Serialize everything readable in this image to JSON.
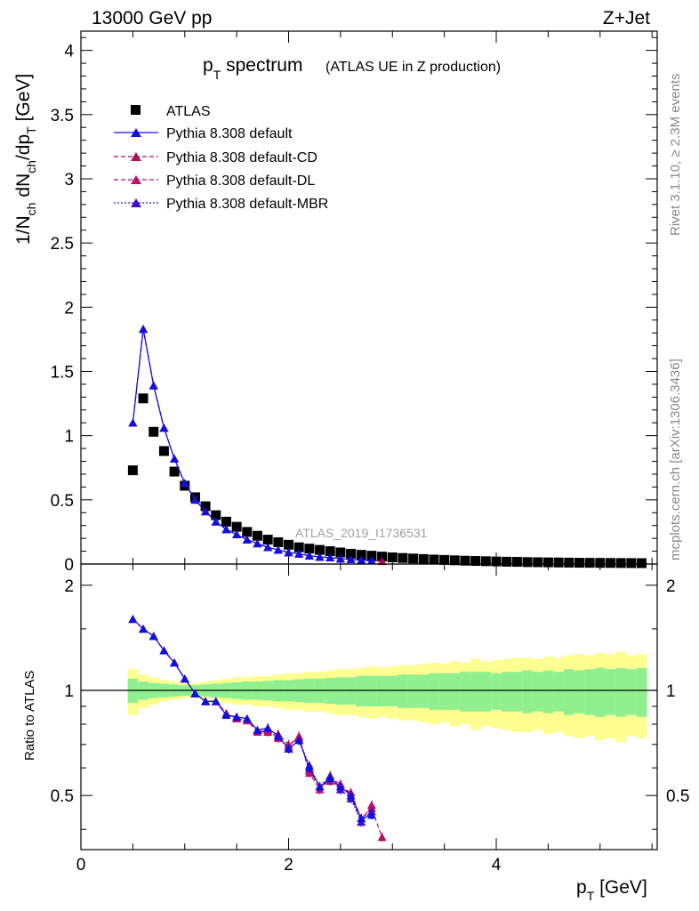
{
  "header": {
    "left": "13000 GeV pp",
    "right": "Z+Jet"
  },
  "side_texts": {
    "top": "Rivet 3.1.10, ≥ 2.3M events",
    "bottom": "mcplots.cern.ch [arXiv:1306.3436]"
  },
  "title": {
    "main": "p",
    "sub": "T",
    "word": " spectrum",
    "paren": "(ATLAS UE in Z production)"
  },
  "watermark": "ATLAS_2019_I1736531",
  "colors": {
    "data": "#000000",
    "default": "#1010e0",
    "cd": "#b0105a",
    "dl": "#c0106a",
    "mbr": "#4010c8",
    "band_inner": "#90f090",
    "band_outer": "#fdfd90"
  },
  "chart_data": [
    {
      "type": "scatter",
      "panel": "main",
      "title": "p_T spectrum (ATLAS UE in Z production)",
      "ylabel": "1/N_ch dN_ch/dp_T [GeV]",
      "xlim": [
        0,
        5.55
      ],
      "ylim": [
        0,
        4.15
      ],
      "yticks": [
        0,
        0.5,
        1,
        1.5,
        2,
        2.5,
        3,
        3.5,
        4
      ],
      "yticklabels": [
        "0",
        "0.5",
        "1",
        "1.5",
        "2",
        "2.5",
        "3",
        "3.5",
        "4"
      ],
      "x": [
        0.5,
        0.6,
        0.7,
        0.8,
        0.9,
        1.0,
        1.1,
        1.2,
        1.3,
        1.4,
        1.5,
        1.6,
        1.7,
        1.8,
        1.9,
        2.0,
        2.1,
        2.2,
        2.3,
        2.4,
        2.5,
        2.6,
        2.7,
        2.8,
        2.9,
        3.0,
        3.1,
        3.2,
        3.3,
        3.4,
        3.5,
        3.6,
        3.7,
        3.8,
        3.9,
        4.0,
        4.1,
        4.2,
        4.3,
        4.4,
        4.5,
        4.6,
        4.7,
        4.8,
        4.9,
        5.0,
        5.1,
        5.2,
        5.3,
        5.4
      ],
      "series": [
        {
          "name": "ATLAS",
          "legend": "ATLAS",
          "marker": "square",
          "values": [
            0.73,
            1.29,
            1.03,
            0.88,
            0.72,
            0.61,
            0.52,
            0.45,
            0.38,
            0.33,
            0.29,
            0.25,
            0.22,
            0.19,
            0.17,
            0.15,
            0.13,
            0.12,
            0.11,
            0.1,
            0.09,
            0.08,
            0.072,
            0.065,
            0.058,
            0.052,
            0.047,
            0.043,
            0.039,
            0.035,
            0.032,
            0.029,
            0.026,
            0.024,
            0.022,
            0.02,
            0.018,
            0.017,
            0.015,
            0.014,
            0.013,
            0.012,
            0.011,
            0.01,
            0.0095,
            0.009,
            0.0085,
            0.008,
            0.0075,
            0.007
          ]
        },
        {
          "name": "default",
          "legend": "Pythia 8.308 default",
          "marker": "triangle",
          "line": "solid",
          "values": [
            1.1,
            1.83,
            1.39,
            1.06,
            0.82,
            0.63,
            0.5,
            0.41,
            0.33,
            0.27,
            0.23,
            0.19,
            0.16,
            0.13,
            0.11,
            0.09,
            0.08,
            0.065,
            0.055,
            0.05,
            0.042,
            0.036,
            0.03,
            0.026
          ]
        },
        {
          "name": "default-CD",
          "legend": "Pythia 8.308 default-CD",
          "marker": "triangle",
          "line": "dashed",
          "values": [
            1.1,
            1.83,
            1.39,
            1.06,
            0.82,
            0.63,
            0.5,
            0.41,
            0.33,
            0.27,
            0.23,
            0.19,
            0.16,
            0.13,
            0.11,
            0.09,
            0.08,
            0.065,
            0.055,
            0.05,
            0.042,
            0.036,
            0.03,
            0.026,
            0.022
          ]
        },
        {
          "name": "default-DL",
          "legend": "Pythia 8.308 default-DL",
          "marker": "triangle",
          "line": "dashed",
          "values": [
            1.1,
            1.83,
            1.39,
            1.06,
            0.82,
            0.63,
            0.5,
            0.41,
            0.33,
            0.27,
            0.23,
            0.19,
            0.16,
            0.13,
            0.11,
            0.09,
            0.08,
            0.065,
            0.055,
            0.05,
            0.042,
            0.036,
            0.03,
            0.026
          ]
        },
        {
          "name": "default-MBR",
          "legend": "Pythia 8.308 default-MBR",
          "marker": "triangle",
          "line": "dotted",
          "values": [
            1.1,
            1.83,
            1.39,
            1.06,
            0.82,
            0.63,
            0.5,
            0.41,
            0.33,
            0.27,
            0.23,
            0.19,
            0.16,
            0.13,
            0.11,
            0.09,
            0.08,
            0.065,
            0.055,
            0.05,
            0.042,
            0.036,
            0.03,
            0.026
          ]
        }
      ]
    },
    {
      "type": "scatter",
      "panel": "ratio",
      "xlabel": "p_T [GeV]",
      "ylabel": "Ratio to ATLAS",
      "xlim": [
        0,
        5.55
      ],
      "ylim": [
        0.35,
        2.3
      ],
      "yscale": "log",
      "yticks": [
        0.5,
        1,
        2
      ],
      "yticklabels": [
        "0.5",
        "1",
        "2"
      ],
      "xticks": [
        0,
        2,
        4
      ],
      "xticklabels": [
        "0",
        "2",
        "4"
      ],
      "x": [
        0.5,
        0.6,
        0.7,
        0.8,
        0.9,
        1.0,
        1.1,
        1.2,
        1.3,
        1.4,
        1.5,
        1.6,
        1.7,
        1.8,
        1.9,
        2.0,
        2.1,
        2.2,
        2.3,
        2.4,
        2.5,
        2.6,
        2.7,
        2.8,
        2.9
      ],
      "band_x_edges": [
        0.45,
        0.55,
        0.65,
        0.75,
        0.85,
        0.95,
        1.05,
        1.15,
        1.25,
        1.35,
        1.45,
        1.55,
        1.65,
        1.75,
        1.85,
        1.95,
        2.05,
        2.15,
        2.25,
        2.35,
        2.45,
        2.55,
        2.65,
        2.75,
        2.85,
        2.95,
        3.05,
        3.15,
        3.25,
        3.35,
        3.45,
        3.55,
        3.65,
        3.75,
        3.85,
        3.95,
        4.05,
        4.15,
        4.25,
        4.35,
        4.45,
        4.55,
        4.65,
        4.75,
        4.85,
        4.95,
        5.05,
        5.15,
        5.25,
        5.35,
        5.45
      ],
      "band_inner": [
        0.08,
        0.06,
        0.05,
        0.045,
        0.04,
        0.035,
        0.035,
        0.04,
        0.045,
        0.05,
        0.055,
        0.06,
        0.06,
        0.065,
        0.07,
        0.07,
        0.075,
        0.08,
        0.08,
        0.085,
        0.09,
        0.09,
        0.1,
        0.1,
        0.1,
        0.1,
        0.11,
        0.11,
        0.11,
        0.12,
        0.12,
        0.12,
        0.13,
        0.13,
        0.13,
        0.12,
        0.13,
        0.13,
        0.14,
        0.13,
        0.14,
        0.13,
        0.15,
        0.14,
        0.15,
        0.16,
        0.15,
        0.16,
        0.15,
        0.16
      ],
      "band_outer": [
        0.15,
        0.11,
        0.09,
        0.07,
        0.06,
        0.05,
        0.05,
        0.06,
        0.07,
        0.08,
        0.09,
        0.09,
        0.1,
        0.1,
        0.11,
        0.12,
        0.12,
        0.13,
        0.13,
        0.14,
        0.15,
        0.15,
        0.16,
        0.17,
        0.16,
        0.17,
        0.18,
        0.18,
        0.19,
        0.2,
        0.19,
        0.21,
        0.2,
        0.23,
        0.21,
        0.22,
        0.23,
        0.24,
        0.24,
        0.23,
        0.25,
        0.24,
        0.26,
        0.27,
        0.26,
        0.28,
        0.27,
        0.29,
        0.26,
        0.27
      ],
      "series": [
        {
          "name": "default",
          "values": [
            1.6,
            1.5,
            1.43,
            1.3,
            1.2,
            1.08,
            0.98,
            0.93,
            0.93,
            0.85,
            0.84,
            0.83,
            0.77,
            0.78,
            0.74,
            0.68,
            0.72,
            0.6,
            0.53,
            0.56,
            0.53,
            0.5,
            0.43,
            0.44
          ]
        },
        {
          "name": "default-CD",
          "values": [
            1.6,
            1.5,
            1.43,
            1.3,
            1.2,
            1.08,
            0.98,
            0.93,
            0.93,
            0.86,
            0.83,
            0.82,
            0.76,
            0.76,
            0.75,
            0.7,
            0.73,
            0.59,
            0.53,
            0.55,
            0.53,
            0.51,
            0.43,
            0.46,
            0.38
          ]
        },
        {
          "name": "default-DL",
          "values": [
            1.6,
            1.5,
            1.43,
            1.3,
            1.2,
            1.08,
            0.98,
            0.93,
            0.93,
            0.86,
            0.83,
            0.82,
            0.76,
            0.77,
            0.73,
            0.69,
            0.74,
            0.58,
            0.52,
            0.56,
            0.54,
            0.5,
            0.42,
            0.47
          ]
        },
        {
          "name": "default-MBR",
          "values": [
            1.6,
            1.5,
            1.43,
            1.3,
            1.2,
            1.08,
            0.98,
            0.93,
            0.93,
            0.85,
            0.84,
            0.83,
            0.77,
            0.78,
            0.74,
            0.68,
            0.72,
            0.61,
            0.53,
            0.57,
            0.52,
            0.49,
            0.42,
            0.45
          ]
        }
      ]
    }
  ],
  "axis_labels": {
    "y_main": [
      "1/N",
      "ch",
      " dN",
      "ch",
      "/dp",
      "T",
      " [GeV]"
    ],
    "y_ratio": "Ratio to ATLAS",
    "x": [
      "p",
      "T",
      " [GeV]"
    ]
  }
}
